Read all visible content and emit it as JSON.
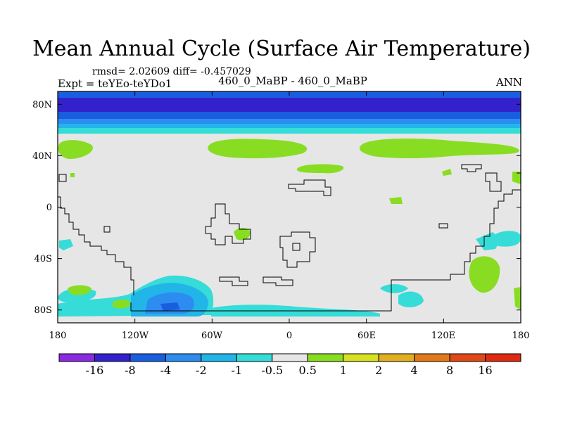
{
  "chart_data": {
    "type": "heatmap",
    "title": "Mean Annual Cycle (Surface Air Temperature)",
    "stats_text": "rmsd= 2.02609  diff= -0.457029",
    "left_label": "Expt = teYEo-teYDo1",
    "center_label": "460_0_MaBP - 460_0_MaBP",
    "right_label": "ANN",
    "x_ticks": [
      "180",
      "120W",
      "60W",
      "0",
      "60E",
      "120E",
      "180"
    ],
    "y_ticks": [
      "80N",
      "40N",
      "0",
      "40S",
      "80S"
    ],
    "xlim": [
      -180,
      180
    ],
    "ylim": [
      -90,
      90
    ],
    "colorbar": {
      "labels": [
        "-16",
        "-8",
        "-4",
        "-2",
        "-1",
        "-0.5",
        "0.5",
        "1",
        "2",
        "4",
        "8",
        "16"
      ],
      "colors": [
        "#8a2be2",
        "#3322cc",
        "#1a5ee0",
        "#2d8cf0",
        "#22b5e8",
        "#36dcd8",
        "#e6e6e6",
        "#88dd22",
        "#d7e022",
        "#e0b020",
        "#e07a18",
        "#e04818",
        "#dd2a10"
      ]
    }
  }
}
